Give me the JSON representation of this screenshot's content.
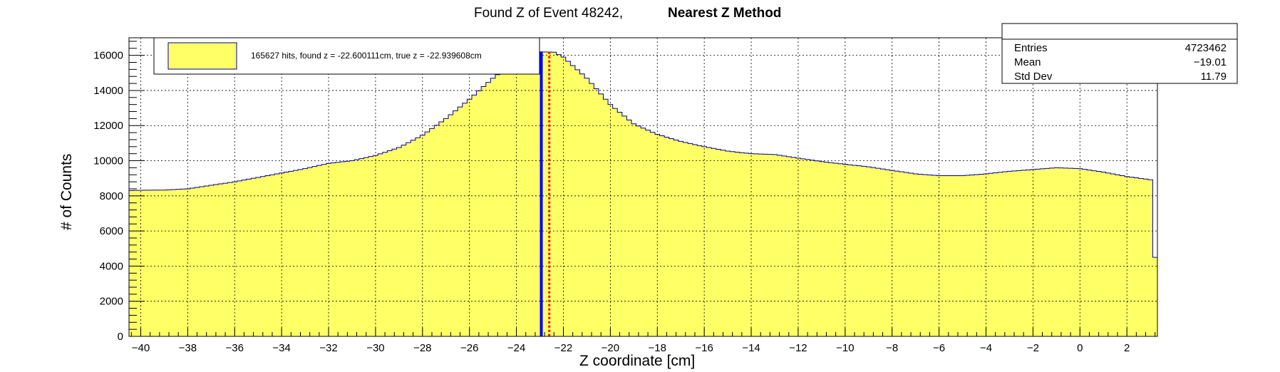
{
  "chart_data": {
    "type": "histogram",
    "title": "Found Z of Event 48242,",
    "title_method": "Nearest Z Method",
    "xlabel": "Z coordinate [cm]",
    "ylabel": "# of Counts",
    "xlim": [
      -40.5,
      3.3
    ],
    "ylim": [
      0,
      17000
    ],
    "x_ticks": [
      -40,
      -38,
      -36,
      -34,
      -32,
      -30,
      -28,
      -26,
      -24,
      -22,
      -20,
      -18,
      -16,
      -14,
      -12,
      -10,
      -8,
      -6,
      -4,
      -2,
      0,
      2
    ],
    "y_ticks": [
      0,
      2000,
      4000,
      6000,
      8000,
      10000,
      12000,
      14000,
      16000
    ],
    "grid": true,
    "fill_color": "#ffff66",
    "line_color": "#000099",
    "bin_width": 0.2,
    "profile": [
      [
        -40.5,
        4200
      ],
      [
        -40.4,
        8300
      ],
      [
        -40.0,
        8320
      ],
      [
        -39.0,
        8330
      ],
      [
        -38.0,
        8400
      ],
      [
        -37.0,
        8600
      ],
      [
        -36.0,
        8800
      ],
      [
        -35.0,
        9050
      ],
      [
        -34.0,
        9300
      ],
      [
        -33.0,
        9550
      ],
      [
        -32.0,
        9850
      ],
      [
        -31.0,
        10000
      ],
      [
        -30.0,
        10300
      ],
      [
        -29.0,
        10750
      ],
      [
        -28.0,
        11450
      ],
      [
        -27.0,
        12400
      ],
      [
        -26.0,
        13500
      ],
      [
        -25.0,
        14700
      ],
      [
        -24.0,
        15700
      ],
      [
        -23.2,
        16200
      ],
      [
        -23.0,
        16200
      ],
      [
        -22.4,
        16180
      ],
      [
        -22.0,
        15900
      ],
      [
        -21.0,
        14700
      ],
      [
        -20.0,
        13200
      ],
      [
        -19.0,
        12100
      ],
      [
        -18.0,
        11500
      ],
      [
        -17.0,
        11100
      ],
      [
        -16.0,
        10800
      ],
      [
        -15.0,
        10550
      ],
      [
        -14.0,
        10400
      ],
      [
        -13.0,
        10350
      ],
      [
        -12.0,
        10150
      ],
      [
        -11.0,
        9950
      ],
      [
        -10.0,
        9800
      ],
      [
        -9.0,
        9650
      ],
      [
        -8.0,
        9450
      ],
      [
        -7.0,
        9250
      ],
      [
        -6.0,
        9150
      ],
      [
        -5.0,
        9150
      ],
      [
        -4.0,
        9250
      ],
      [
        -3.0,
        9400
      ],
      [
        -2.0,
        9500
      ],
      [
        -1.0,
        9600
      ],
      [
        0.0,
        9550
      ],
      [
        1.0,
        9350
      ],
      [
        2.0,
        9100
      ],
      [
        3.1,
        8900
      ],
      [
        3.2,
        4500
      ]
    ],
    "found_z": -22.600111,
    "true_z": -22.939608,
    "found_line_color": "#0000ff",
    "true_line_color": "#ff0000",
    "legend": {
      "text": "165627 hits, found z = -22.600111cm, true z = -22.939608cm",
      "swatch_color": "#ffff66"
    },
    "stats": {
      "rows": [
        {
          "label": "Entries",
          "value": "4723462"
        },
        {
          "label": "Mean",
          "value": "−19.01"
        },
        {
          "label": "Std Dev",
          "value": "11.79"
        }
      ]
    }
  }
}
